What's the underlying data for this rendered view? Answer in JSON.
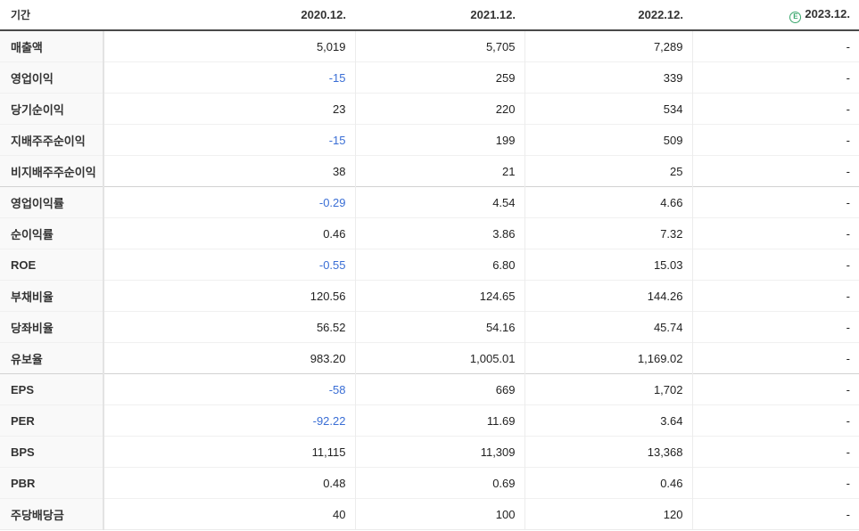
{
  "header": {
    "period_label": "기간",
    "columns": [
      "2020.12.",
      "2021.12.",
      "2022.12.",
      "2023.12."
    ],
    "estimate_icon": "E"
  },
  "colors": {
    "negative_value": "#3a6ed5",
    "estimate_green": "#3aa76d",
    "header_border": "#4a4a4a",
    "label_bg": "#f9f9f9"
  },
  "rows": [
    {
      "label": "매출액",
      "values": [
        "5,019",
        "5,705",
        "7,289",
        "-"
      ]
    },
    {
      "label": "영업이익",
      "values": [
        "-15",
        "259",
        "339",
        "-"
      ]
    },
    {
      "label": "당기순이익",
      "values": [
        "23",
        "220",
        "534",
        "-"
      ]
    },
    {
      "label": "지배주주순이익",
      "values": [
        "-15",
        "199",
        "509",
        "-"
      ]
    },
    {
      "label": "비지배주주순이익",
      "values": [
        "38",
        "21",
        "25",
        "-"
      ]
    },
    {
      "label": "영업이익률",
      "values": [
        "-0.29",
        "4.54",
        "4.66",
        "-"
      ]
    },
    {
      "label": "순이익률",
      "values": [
        "0.46",
        "3.86",
        "7.32",
        "-"
      ]
    },
    {
      "label": "ROE",
      "values": [
        "-0.55",
        "6.80",
        "15.03",
        "-"
      ]
    },
    {
      "label": "부채비율",
      "values": [
        "120.56",
        "124.65",
        "144.26",
        "-"
      ]
    },
    {
      "label": "당좌비율",
      "values": [
        "56.52",
        "54.16",
        "45.74",
        "-"
      ]
    },
    {
      "label": "유보율",
      "values": [
        "983.20",
        "1,005.01",
        "1,169.02",
        "-"
      ]
    },
    {
      "label": "EPS",
      "values": [
        "-58",
        "669",
        "1,702",
        "-"
      ]
    },
    {
      "label": "PER",
      "values": [
        "-92.22",
        "11.69",
        "3.64",
        "-"
      ]
    },
    {
      "label": "BPS",
      "values": [
        "11,115",
        "11,309",
        "13,368",
        "-"
      ]
    },
    {
      "label": "PBR",
      "values": [
        "0.48",
        "0.69",
        "0.46",
        "-"
      ]
    },
    {
      "label": "주당배당금",
      "values": [
        "40",
        "100",
        "120",
        "-"
      ]
    }
  ]
}
